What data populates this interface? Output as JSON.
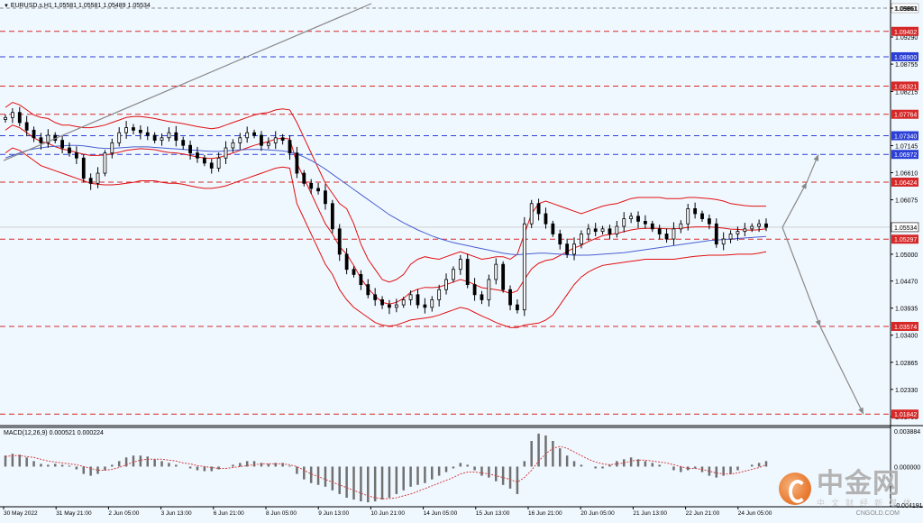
{
  "header": {
    "symbol_line": "EURUSD.s,H1  1.05581 1.05581 1.05489 1.05534",
    "macd_line": "MACD(12,26,9) 0.000521 0.000224"
  },
  "watermark": {
    "name": "中金网",
    "sub": "中文财经新媒体",
    "domain": "CNGOLD.COM"
  },
  "colors": {
    "background": "#f0f8ff",
    "bollinger": "#e01010",
    "ma": "#4a5fd0",
    "candle": "#000000",
    "red_level": "#d62828",
    "blue_level": "#2b3fd6",
    "arrow": "#888888",
    "macd_hist": "#707070",
    "macd_signal": "#d04040"
  },
  "chart_data": [
    {
      "type": "candlestick",
      "symbol": "EURUSD.s",
      "timeframe": "H1",
      "ylim": [
        1.0165,
        1.0995
      ],
      "y_ticks": [
        "1.09861",
        "1.09290",
        "1.08755",
        "1.08215",
        "1.07145",
        "1.06610",
        "1.06075",
        "1.05000",
        "1.04470",
        "1.03935",
        "1.03400",
        "1.02865",
        "1.02330",
        "1.01795"
      ],
      "x_ticks": [
        "30 May 2022",
        "31 May 21:00",
        "2 Jun 05:00",
        "3 Jun 13:00",
        "6 Jun 21:00",
        "8 Jun 05:00",
        "9 Jun 13:00",
        "10 Jun 21:00",
        "14 Jun 05:00",
        "15 Jun 13:00",
        "16 Jun 21:00",
        "20 Jun 05:00",
        "21 Jun 13:00",
        "22 Jun 21:00",
        "24 Jun 05:00"
      ],
      "price_levels": [
        {
          "value": 1.09402,
          "label": "1.09402",
          "color": "red"
        },
        {
          "value": 1.089,
          "label": "1.08900",
          "color": "blue"
        },
        {
          "value": 1.08321,
          "label": "1.08321",
          "color": "red"
        },
        {
          "value": 1.07764,
          "label": "1.07764",
          "color": "red"
        },
        {
          "value": 1.0734,
          "label": "1.07340",
          "color": "blue"
        },
        {
          "value": 1.06972,
          "label": "1.06972",
          "color": "blue"
        },
        {
          "value": 1.06424,
          "label": "1.06424",
          "color": "red"
        },
        {
          "value": 1.05297,
          "label": "1.05297",
          "color": "red"
        },
        {
          "value": 1.03574,
          "label": "1.03574",
          "color": "red"
        },
        {
          "value": 1.01842,
          "label": "1.01842",
          "color": "red"
        }
      ],
      "current_price": {
        "value": 1.05534,
        "label": "1.05534"
      },
      "top_grey_level": {
        "value": 1.09861,
        "label": "1.09861"
      },
      "close_series": [
        1.077,
        1.078,
        1.076,
        1.0745,
        1.073,
        1.072,
        1.0735,
        1.0725,
        1.071,
        1.07,
        1.069,
        1.065,
        1.064,
        1.066,
        1.07,
        1.072,
        1.074,
        1.075,
        1.0745,
        1.074,
        1.0735,
        1.0725,
        1.073,
        1.074,
        1.0725,
        1.0715,
        1.07,
        1.069,
        1.068,
        1.067,
        1.069,
        1.071,
        1.072,
        1.073,
        1.074,
        1.0735,
        1.0715,
        1.072,
        1.073,
        1.0725,
        1.07,
        1.066,
        1.064,
        1.063,
        1.0625,
        1.06,
        1.055,
        1.05,
        1.047,
        1.046,
        1.044,
        1.042,
        1.041,
        1.04,
        1.0395,
        1.04,
        1.041,
        1.042,
        1.04,
        1.0395,
        1.041,
        1.043,
        1.045,
        1.047,
        1.049,
        1.044,
        1.042,
        1.041,
        1.045,
        1.048,
        1.043,
        1.04,
        1.039,
        1.056,
        1.06,
        1.058,
        1.056,
        1.054,
        1.052,
        1.05,
        1.052,
        1.054,
        1.055,
        1.0545,
        1.055,
        1.054,
        1.0555,
        1.057,
        1.0575,
        1.0565,
        1.056,
        1.055,
        1.054,
        1.053,
        1.055,
        1.056,
        1.059,
        1.058,
        1.057,
        1.056,
        1.052,
        1.053,
        1.054,
        1.0545,
        1.055,
        1.0555,
        1.056,
        1.0553
      ],
      "bollinger_upper": [
        1.079,
        1.08,
        1.0795,
        1.0785,
        1.0775,
        1.077,
        1.0768,
        1.076,
        1.0755,
        1.0755,
        1.0752,
        1.075,
        1.075,
        1.0752,
        1.0755,
        1.076,
        1.0765,
        1.077,
        1.0772,
        1.0772,
        1.077,
        1.0768,
        1.0765,
        1.0762,
        1.076,
        1.0758,
        1.0755,
        1.0752,
        1.075,
        1.0748,
        1.075,
        1.0755,
        1.076,
        1.0765,
        1.077,
        1.0775,
        1.0778,
        1.078,
        1.0785,
        1.0787,
        1.0785,
        1.076,
        1.073,
        1.07,
        1.067,
        1.064,
        1.062,
        1.06,
        1.059,
        1.056,
        1.052,
        1.049,
        1.047,
        1.045,
        1.0445,
        1.045,
        1.046,
        1.048,
        1.049,
        1.0495,
        1.0492,
        1.049,
        1.0495,
        1.05,
        1.0505,
        1.05,
        1.0495,
        1.049,
        1.0492,
        1.0495,
        1.0495,
        1.049,
        1.05,
        1.054,
        1.058,
        1.06,
        1.0605,
        1.06,
        1.0595,
        1.059,
        1.0585,
        1.058,
        1.0585,
        1.059,
        1.0595,
        1.0598,
        1.06,
        1.0605,
        1.061,
        1.0612,
        1.0612,
        1.0612,
        1.0612,
        1.061,
        1.061,
        1.061,
        1.0612,
        1.0612,
        1.0611,
        1.061,
        1.0608,
        1.0605,
        1.06,
        1.0598,
        1.0596,
        1.0595,
        1.0595,
        1.0595
      ],
      "bollinger_lower": [
        1.07,
        1.071,
        1.0705,
        1.0695,
        1.0685,
        1.0675,
        1.067,
        1.0665,
        1.066,
        1.0655,
        1.065,
        1.0645,
        1.064,
        1.0638,
        1.0637,
        1.0637,
        1.0638,
        1.064,
        1.0642,
        1.0645,
        1.0645,
        1.0645,
        1.0642,
        1.064,
        1.064,
        1.0638,
        1.0635,
        1.0632,
        1.063,
        1.063,
        1.0632,
        1.0635,
        1.064,
        1.0645,
        1.065,
        1.0655,
        1.066,
        1.0665,
        1.067,
        1.0672,
        1.067,
        1.06,
        1.057,
        1.054,
        1.051,
        1.048,
        1.046,
        1.043,
        1.041,
        1.0395,
        1.0385,
        1.0375,
        1.0365,
        1.036,
        1.0358,
        1.036,
        1.0365,
        1.037,
        1.0372,
        1.0374,
        1.0376,
        1.038,
        1.0385,
        1.039,
        1.0395,
        1.0392,
        1.0385,
        1.0378,
        1.0372,
        1.0365,
        1.036,
        1.0355,
        1.0355,
        1.036,
        1.0362,
        1.0364,
        1.037,
        1.038,
        1.04,
        1.042,
        1.044,
        1.0455,
        1.0465,
        1.0472,
        1.0478,
        1.048,
        1.0482,
        1.0484,
        1.0486,
        1.0488,
        1.049,
        1.049,
        1.049,
        1.049,
        1.049,
        1.0492,
        1.0494,
        1.0496,
        1.0497,
        1.0498,
        1.0498,
        1.0498,
        1.0499,
        1.05,
        1.05,
        1.05,
        1.0502,
        1.0505
      ],
      "moving_average": [
        1.069,
        1.0695,
        1.07,
        1.0705,
        1.0708,
        1.071,
        1.0712,
        1.0713,
        1.0714,
        1.0715,
        1.0715,
        1.0714,
        1.0712,
        1.071,
        1.0709,
        1.0709,
        1.071,
        1.0711,
        1.0712,
        1.0712,
        1.0712,
        1.0711,
        1.071,
        1.0709,
        1.0708,
        1.0707,
        1.0706,
        1.0705,
        1.0704,
        1.0703,
        1.0703,
        1.0704,
        1.0705,
        1.0706,
        1.0707,
        1.0707,
        1.0707,
        1.0706,
        1.0705,
        1.0704,
        1.0702,
        1.0698,
        1.0692,
        1.0685,
        1.0677,
        1.0668,
        1.0658,
        1.0648,
        1.0638,
        1.0628,
        1.0618,
        1.0608,
        1.0598,
        1.0588,
        1.0578,
        1.057,
        1.0562,
        1.0555,
        1.0548,
        1.0542,
        1.0536,
        1.0531,
        1.0527,
        1.0523,
        1.052,
        1.0517,
        1.0514,
        1.0511,
        1.0508,
        1.0505,
        1.0502,
        1.05,
        1.0499,
        1.05,
        1.0501,
        1.0502,
        1.0502,
        1.0501,
        1.05,
        1.0499,
        1.0498,
        1.0498,
        1.0498,
        1.0499,
        1.05,
        1.0501,
        1.0502,
        1.0503,
        1.0505,
        1.0507,
        1.0509,
        1.0511,
        1.0513,
        1.0515,
        1.0517,
        1.0519,
        1.0521,
        1.0523,
        1.0525,
        1.0527,
        1.0528,
        1.0529,
        1.053,
        1.0531,
        1.0532,
        1.0533,
        1.0534,
        1.0535
      ]
    },
    {
      "type": "histogram",
      "name": "MACD(12,26,9)",
      "values_text": [
        "0.000521",
        "0.000224"
      ],
      "y_ticks": [
        "0.003884",
        "0.000000",
        "-0.004191"
      ],
      "ylim": [
        -0.004191,
        0.003884
      ],
      "histogram": [
        0.0012,
        0.0014,
        0.0013,
        0.001,
        0.0006,
        0.0003,
        0.0002,
        0.0003,
        0.0002,
        0.0001,
        -0.0003,
        -0.0008,
        -0.001,
        -0.0008,
        -0.0004,
        0.0002,
        0.0006,
        0.001,
        0.0012,
        0.0012,
        0.0011,
        0.0008,
        0.0006,
        0.0004,
        0.0002,
        0.0,
        -0.0002,
        -0.0004,
        -0.0005,
        -0.0005,
        -0.0003,
        0.0,
        0.0002,
        0.0004,
        0.0006,
        0.0006,
        0.0004,
        0.0003,
        0.0004,
        0.0004,
        0.0001,
        -0.0008,
        -0.0014,
        -0.0018,
        -0.002,
        -0.0022,
        -0.0026,
        -0.003,
        -0.0034,
        -0.0036,
        -0.0038,
        -0.0039,
        -0.0038,
        -0.0036,
        -0.0034,
        -0.003,
        -0.0026,
        -0.0022,
        -0.002,
        -0.0018,
        -0.0014,
        -0.001,
        -0.0006,
        -0.0002,
        0.0004,
        0.0002,
        -0.0004,
        -0.001,
        -0.0012,
        -0.0016,
        -0.002,
        -0.0024,
        -0.003,
        0.0006,
        0.0028,
        0.0036,
        0.0034,
        0.0028,
        0.002,
        0.0012,
        0.0006,
        0.0002,
        0.0,
        -0.0002,
        -0.0002,
        0.0002,
        0.0006,
        0.0008,
        0.001,
        0.0008,
        0.0006,
        0.0004,
        0.0002,
        0.0,
        -0.0004,
        -0.0006,
        -0.0004,
        -0.0002,
        -0.0006,
        -0.001,
        -0.0012,
        -0.001,
        -0.0008,
        -0.0004,
        0.0,
        0.0002,
        0.0004,
        0.0006
      ],
      "signal": [
        0.0011,
        0.0012,
        0.0012,
        0.0011,
        0.001,
        0.0008,
        0.0006,
        0.0005,
        0.0004,
        0.0003,
        0.0002,
        0.0,
        -0.0002,
        -0.0004,
        -0.0004,
        -0.0003,
        -0.0001,
        0.0002,
        0.0005,
        0.0007,
        0.0008,
        0.0008,
        0.0008,
        0.0007,
        0.0006,
        0.0004,
        0.0003,
        0.0001,
        0.0,
        -0.0001,
        -0.0002,
        -0.0002,
        -0.0001,
        0.0,
        0.0001,
        0.0002,
        0.0003,
        0.0003,
        0.0003,
        0.0003,
        0.0002,
        0.0,
        -0.0004,
        -0.0008,
        -0.0011,
        -0.0014,
        -0.0017,
        -0.002,
        -0.0023,
        -0.0026,
        -0.0029,
        -0.0032,
        -0.0034,
        -0.0035,
        -0.0035,
        -0.0034,
        -0.0032,
        -0.003,
        -0.0027,
        -0.0024,
        -0.0021,
        -0.0018,
        -0.0015,
        -0.0012,
        -0.0008,
        -0.0006,
        -0.0006,
        -0.0007,
        -0.0008,
        -0.001,
        -0.0012,
        -0.0014,
        -0.0017,
        -0.0012,
        -0.0004,
        0.0006,
        0.0014,
        0.002,
        0.0022,
        0.002,
        0.0016,
        0.0012,
        0.0008,
        0.0005,
        0.0003,
        0.0002,
        0.0003,
        0.0004,
        0.0006,
        0.0007,
        0.0007,
        0.0006,
        0.0005,
        0.0004,
        0.0002,
        0.0,
        -0.0002,
        -0.0002,
        -0.0003,
        -0.0005,
        -0.0007,
        -0.0008,
        -0.0008,
        -0.0007,
        -0.0005,
        -0.0003,
        -0.0001,
        0.0002
      ]
    }
  ]
}
